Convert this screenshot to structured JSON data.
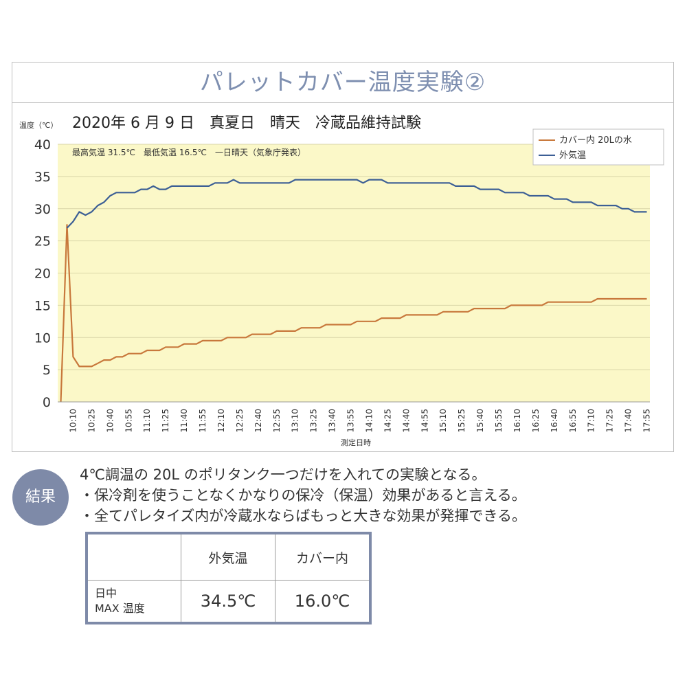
{
  "panel_title": "パレットカバー温度実験②",
  "chart_data": {
    "type": "line",
    "title": "2020年 6 月 9 日　真夏日　晴天　冷蔵品維持試験",
    "subtitle": "最高気温 31.5℃　最低気温 16.5℃　一日晴天（気象庁発表）",
    "ylabel": "温度（℃）",
    "xlabel": "測定日時",
    "ylim": [
      0,
      40
    ],
    "yticks": [
      0,
      5,
      10,
      15,
      20,
      25,
      30,
      35,
      40
    ],
    "xticks": [
      "10:10",
      "10:25",
      "10:40",
      "10:55",
      "11:10",
      "11:25",
      "11:40",
      "11:55",
      "12:10",
      "12:25",
      "12:40",
      "12:55",
      "13:10",
      "13:25",
      "13:40",
      "13:55",
      "14:10",
      "14:25",
      "14:40",
      "14:55",
      "15:10",
      "15:25",
      "15:40",
      "15:55",
      "16:10",
      "16:25",
      "16:40",
      "16:55",
      "17:10",
      "17:25",
      "17:40",
      "17:55"
    ],
    "legend_position": "top-right",
    "background_color": "#fbf8c8",
    "series": [
      {
        "name": "カバー内 20Lの水",
        "color": "#c8783c",
        "x": [
          "10:00",
          "10:05",
          "10:10",
          "10:15",
          "10:20",
          "10:25",
          "10:30",
          "10:35",
          "10:40",
          "10:45",
          "10:50",
          "10:55",
          "11:00",
          "11:05",
          "11:10",
          "11:15",
          "11:20",
          "11:25",
          "11:30",
          "11:35",
          "11:40",
          "11:45",
          "11:50",
          "11:55",
          "12:00",
          "12:05",
          "12:10",
          "12:15",
          "12:20",
          "12:25",
          "12:30",
          "12:35",
          "12:40",
          "12:45",
          "12:50",
          "12:55",
          "13:00",
          "13:05",
          "13:10",
          "13:15",
          "13:20",
          "13:25",
          "13:30",
          "13:35",
          "13:40",
          "13:45",
          "13:50",
          "13:55",
          "14:00",
          "14:05",
          "14:10",
          "14:15",
          "14:20",
          "14:25",
          "14:30",
          "14:35",
          "14:40",
          "14:45",
          "14:50",
          "14:55",
          "15:00",
          "15:05",
          "15:10",
          "15:15",
          "15:20",
          "15:25",
          "15:30",
          "15:35",
          "15:40",
          "15:45",
          "15:50",
          "15:55",
          "16:00",
          "16:05",
          "16:10",
          "16:15",
          "16:20",
          "16:25",
          "16:30",
          "16:35",
          "16:40",
          "16:45",
          "16:50",
          "16:55",
          "17:00",
          "17:05",
          "17:10",
          "17:15",
          "17:20",
          "17:25",
          "17:30",
          "17:35",
          "17:40",
          "17:45",
          "17:50",
          "17:55"
        ],
        "values": [
          0,
          27.5,
          7,
          5.5,
          5.5,
          5.5,
          6,
          6.5,
          6.5,
          7,
          7,
          7.5,
          7.5,
          7.5,
          8,
          8,
          8,
          8.5,
          8.5,
          8.5,
          9,
          9,
          9,
          9.5,
          9.5,
          9.5,
          9.5,
          10,
          10,
          10,
          10,
          10.5,
          10.5,
          10.5,
          10.5,
          11,
          11,
          11,
          11,
          11.5,
          11.5,
          11.5,
          11.5,
          12,
          12,
          12,
          12,
          12,
          12.5,
          12.5,
          12.5,
          12.5,
          13,
          13,
          13,
          13,
          13.5,
          13.5,
          13.5,
          13.5,
          13.5,
          13.5,
          14,
          14,
          14,
          14,
          14,
          14.5,
          14.5,
          14.5,
          14.5,
          14.5,
          14.5,
          15,
          15,
          15,
          15,
          15,
          15,
          15.5,
          15.5,
          15.5,
          15.5,
          15.5,
          15.5,
          15.5,
          15.5,
          16,
          16,
          16,
          16,
          16,
          16,
          16,
          16,
          16
        ]
      },
      {
        "name": "外気温",
        "color": "#3c5f95",
        "x": [
          "10:05",
          "10:10",
          "10:15",
          "10:20",
          "10:25",
          "10:30",
          "10:35",
          "10:40",
          "10:45",
          "10:50",
          "10:55",
          "11:00",
          "11:05",
          "11:10",
          "11:15",
          "11:20",
          "11:25",
          "11:30",
          "11:35",
          "11:40",
          "11:45",
          "11:50",
          "11:55",
          "12:00",
          "12:05",
          "12:10",
          "12:15",
          "12:20",
          "12:25",
          "12:30",
          "12:35",
          "12:40",
          "12:45",
          "12:50",
          "12:55",
          "13:00",
          "13:05",
          "13:10",
          "13:15",
          "13:20",
          "13:25",
          "13:30",
          "13:35",
          "13:40",
          "13:45",
          "13:50",
          "13:55",
          "14:00",
          "14:05",
          "14:10",
          "14:15",
          "14:20",
          "14:25",
          "14:30",
          "14:35",
          "14:40",
          "14:45",
          "14:50",
          "14:55",
          "15:00",
          "15:05",
          "15:10",
          "15:15",
          "15:20",
          "15:25",
          "15:30",
          "15:35",
          "15:40",
          "15:45",
          "15:50",
          "15:55",
          "16:00",
          "16:05",
          "16:10",
          "16:15",
          "16:20",
          "16:25",
          "16:30",
          "16:35",
          "16:40",
          "16:45",
          "16:50",
          "16:55",
          "17:00",
          "17:05",
          "17:10",
          "17:15",
          "17:20",
          "17:25",
          "17:30",
          "17:35",
          "17:40",
          "17:45",
          "17:50",
          "17:55"
        ],
        "values": [
          27,
          28,
          29.5,
          29,
          29.5,
          30.5,
          31,
          32,
          32.5,
          32.5,
          32.5,
          32.5,
          33,
          33,
          33.5,
          33,
          33,
          33.5,
          33.5,
          33.5,
          33.5,
          33.5,
          33.5,
          33.5,
          34,
          34,
          34,
          34.5,
          34,
          34,
          34,
          34,
          34,
          34,
          34,
          34,
          34,
          34.5,
          34.5,
          34.5,
          34.5,
          34.5,
          34.5,
          34.5,
          34.5,
          34.5,
          34.5,
          34.5,
          34,
          34.5,
          34.5,
          34.5,
          34,
          34,
          34,
          34,
          34,
          34,
          34,
          34,
          34,
          34,
          34,
          33.5,
          33.5,
          33.5,
          33.5,
          33,
          33,
          33,
          33,
          32.5,
          32.5,
          32.5,
          32.5,
          32,
          32,
          32,
          32,
          31.5,
          31.5,
          31.5,
          31,
          31,
          31,
          31,
          30.5,
          30.5,
          30.5,
          30.5,
          30,
          30,
          29.5,
          29.5,
          29.5
        ]
      }
    ]
  },
  "result": {
    "badge": "結果",
    "lines": [
      "4℃調温の 20L のポリタンク一つだけを入れての実験となる。",
      "・保冷剤を使うことなくかなりの保冷（保温）効果があると言える。",
      "・全てパレタイズ内が冷蔵水ならばもっと大きな効果が発揮できる。"
    ]
  },
  "max_table": {
    "headers": [
      "",
      "外気温",
      "カバー内"
    ],
    "row_label_line1": "日中",
    "row_label_line2": "MAX 温度",
    "values": [
      "34.5℃",
      "16.0℃"
    ]
  }
}
